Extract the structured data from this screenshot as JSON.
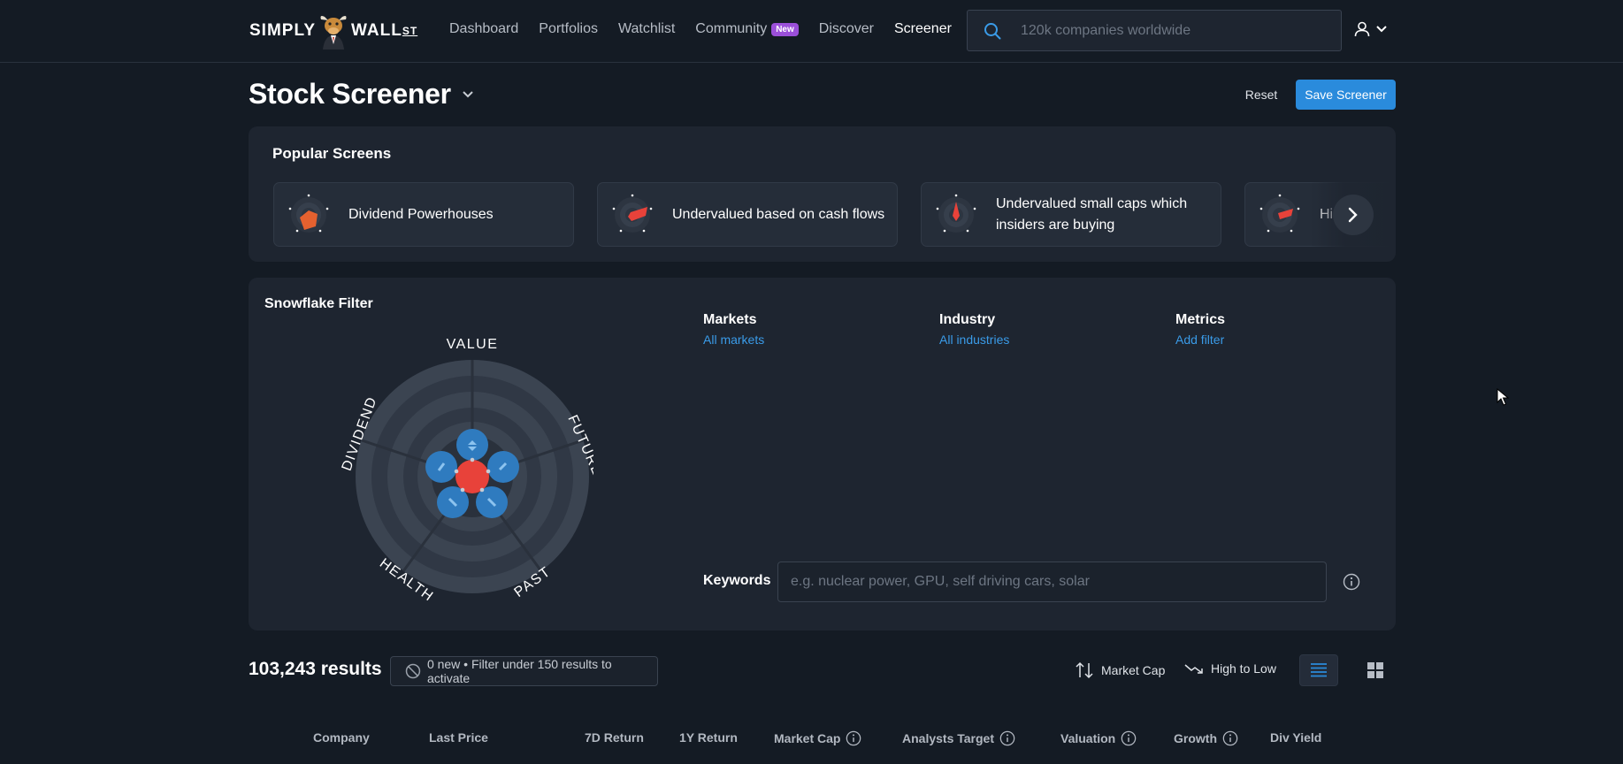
{
  "nav": {
    "logo": {
      "left": "SIMPLY",
      "right": "WALL",
      "suffix": "ST"
    },
    "links": [
      {
        "label": "Dashboard"
      },
      {
        "label": "Portfolios"
      },
      {
        "label": "Watchlist"
      },
      {
        "label": "Community",
        "badge": "New"
      },
      {
        "label": "Discover"
      },
      {
        "label": "Screener",
        "active": true
      }
    ],
    "search_placeholder": "120k companies worldwide"
  },
  "header": {
    "title": "Stock Screener",
    "reset_label": "Reset",
    "save_label": "Save Screener"
  },
  "popular": {
    "title": "Popular Screens",
    "cards": [
      {
        "label": "Dividend Powerhouses"
      },
      {
        "label": "Undervalued based on cash flows"
      },
      {
        "label": "Undervalued small caps which insiders are buying"
      },
      {
        "label": "Hi"
      }
    ]
  },
  "snowflake": {
    "title": "Snowflake Filter",
    "axes": [
      "VALUE",
      "FUTURE",
      "PAST",
      "HEALTH",
      "DIVIDEND"
    ],
    "markets": {
      "label": "Markets",
      "value": "All markets"
    },
    "industry": {
      "label": "Industry",
      "value": "All industries"
    },
    "metrics": {
      "label": "Metrics",
      "value": "Add filter"
    },
    "keywords_label": "Keywords",
    "keywords_placeholder": "e.g. nuclear power, GPU, self driving cars, solar"
  },
  "results": {
    "count": "103,243 results",
    "new_text": "0 new • Filter under 150 results to activate",
    "sort_field": "Market Cap",
    "sort_order": "High to Low"
  },
  "table": {
    "columns": [
      {
        "label": "Company"
      },
      {
        "label": "Last Price"
      },
      {
        "label": "7D Return"
      },
      {
        "label": "1Y Return"
      },
      {
        "label": "Market Cap",
        "info": true
      },
      {
        "label": "Analysts Target",
        "info": true
      },
      {
        "label": "Valuation",
        "info": true
      },
      {
        "label": "Growth",
        "info": true
      },
      {
        "label": "Div Yield"
      }
    ]
  },
  "colors": {
    "accent": "#2a8bdc",
    "badge": "#9b4fd9",
    "snow_red": "#e8423a",
    "snow_blue": "#2f7bbf"
  }
}
